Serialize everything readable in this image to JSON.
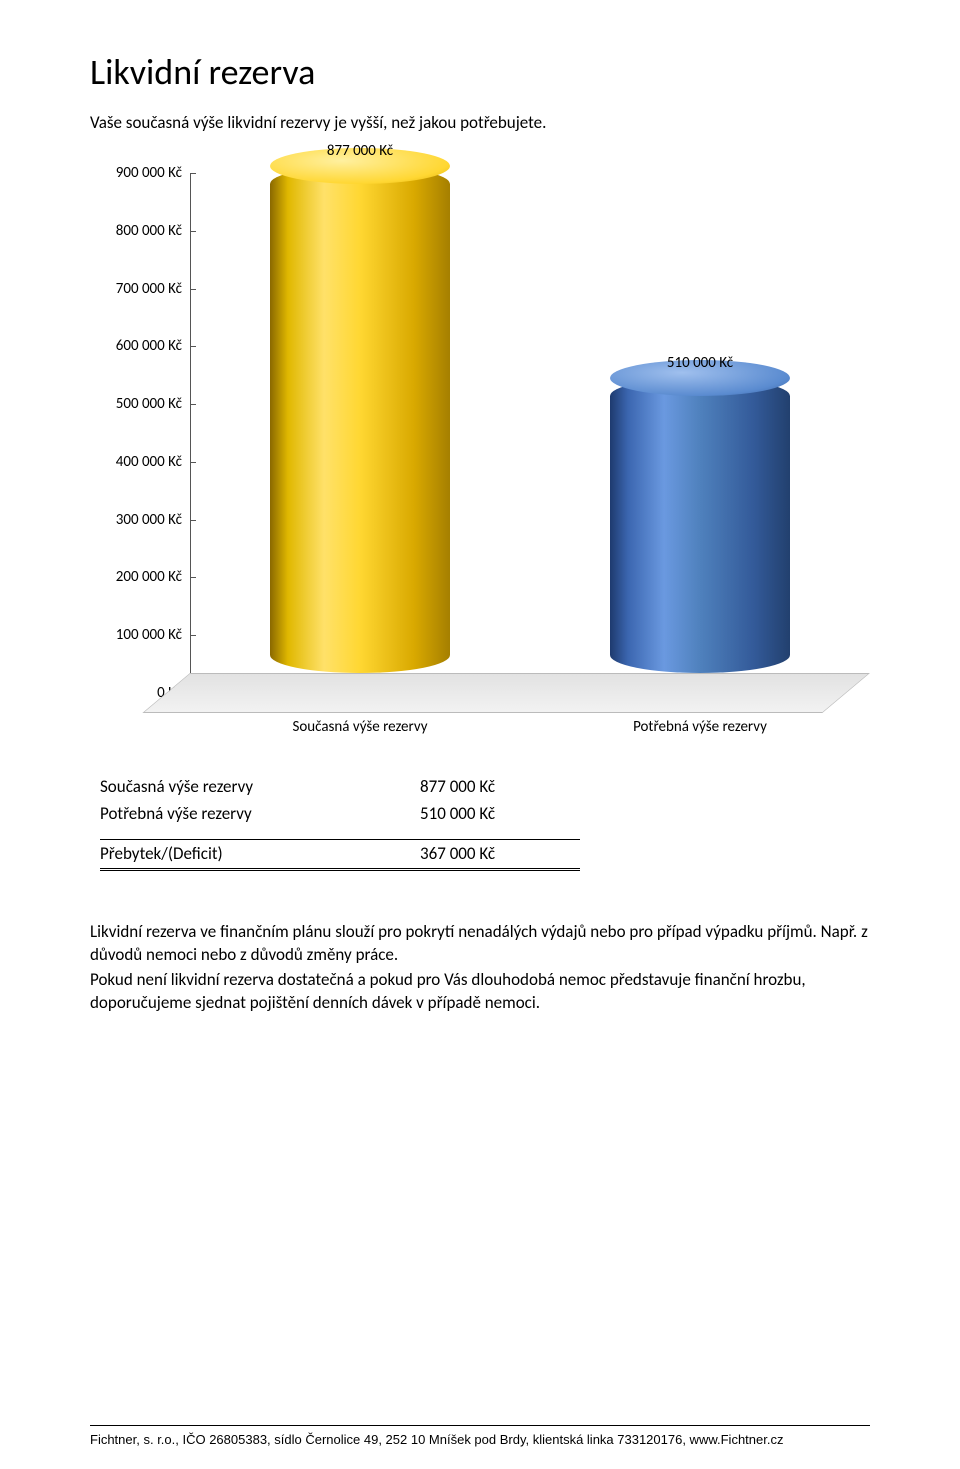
{
  "title": "Likvidní rezerva",
  "subtitle": "Vaše současná výše likvidní rezervy je vyšší, než jakou potřebujete.",
  "chart": {
    "type": "bar-cylinder-3d",
    "ymax": 900000,
    "ymin": 0,
    "ytick_step": 100000,
    "yticks": [
      {
        "v": 900000,
        "label": "900 000 Kč"
      },
      {
        "v": 800000,
        "label": "800 000 Kč"
      },
      {
        "v": 700000,
        "label": "700 000 Kč"
      },
      {
        "v": 600000,
        "label": "600 000 Kč"
      },
      {
        "v": 500000,
        "label": "500 000 Kč"
      },
      {
        "v": 400000,
        "label": "400 000 Kč"
      },
      {
        "v": 300000,
        "label": "300 000 Kč"
      },
      {
        "v": 200000,
        "label": "200 000 Kč"
      },
      {
        "v": 100000,
        "label": "100 000 Kč"
      },
      {
        "v": 0,
        "label": "0 Kč"
      }
    ],
    "bars": [
      {
        "category": "Současná výše rezervy",
        "value": 877000,
        "value_label": "877 000 Kč",
        "color_body": "#ffd732",
        "color_top": "#ffe169",
        "kind": "yellow"
      },
      {
        "category": "Potřebná výše rezervy",
        "value": 510000,
        "value_label": "510 000 Kč",
        "color_body": "#4f81bd",
        "color_top": "#6a99e0",
        "kind": "blue"
      }
    ],
    "floor_color": "#e8e8e8",
    "axis_color": "#555555",
    "label_fontsize": 15
  },
  "summary": {
    "rows": [
      {
        "label": "Současná výše rezervy",
        "value": "877 000 Kč"
      },
      {
        "label": "Potřebná výše rezervy",
        "value": "510 000 Kč"
      }
    ],
    "result": {
      "label": "Přebytek/(Deficit)",
      "value": "367 000 Kč"
    }
  },
  "paragraphs": [
    "Likvidní rezerva ve finančním plánu slouží pro pokrytí nenadálých výdajů nebo pro případ výpadku příjmů. Např. z důvodů nemoci nebo z důvodů změny práce.",
    "Pokud není likvidní rezerva dostatečná a pokud pro Vás dlouhodobá nemoc představuje finanční hrozbu, doporučujeme sjednat pojištění denních dávek v případě nemoci."
  ],
  "footer": "Fichtner, s. r.o., IČO 26805383, sídlo Černolice 49, 252 10 Mníšek pod Brdy, klientská linka 733120176, www.Fichtner.cz"
}
